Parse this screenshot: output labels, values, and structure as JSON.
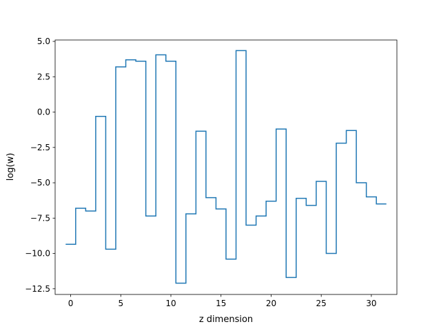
{
  "chart_data": {
    "type": "line",
    "style": "step",
    "title": "",
    "xlabel": "z dimension",
    "ylabel": "log(w)",
    "xlim": [
      -1.55,
      32.55
    ],
    "ylim": [
      -12.9,
      5.1
    ],
    "xticks": [
      0,
      5,
      10,
      15,
      20,
      25,
      30
    ],
    "xtick_labels": [
      "0",
      "5",
      "10",
      "15",
      "20",
      "25",
      "30"
    ],
    "yticks": [
      -12.5,
      -10.0,
      -7.5,
      -5.0,
      -2.5,
      0.0,
      2.5,
      5.0
    ],
    "ytick_labels": [
      "−12.5",
      "−10.0",
      "−7.5",
      "−5.0",
      "−2.5",
      "0.0",
      "2.5",
      "5.0"
    ],
    "grid": false,
    "color": "#1f77b4",
    "series": [
      {
        "x": [
          0,
          1,
          2,
          3,
          4,
          5,
          6,
          7,
          8,
          9,
          10,
          11,
          12,
          13,
          14,
          15,
          16,
          17,
          18,
          19,
          20,
          21,
          22,
          23,
          24,
          25,
          26,
          27,
          28,
          29,
          30,
          31
        ],
        "values": [
          -9.35,
          -6.8,
          -7.0,
          -0.3,
          -9.7,
          3.2,
          3.7,
          3.6,
          -7.35,
          4.05,
          3.6,
          -12.1,
          -7.2,
          -1.35,
          -6.05,
          -6.85,
          -10.4,
          4.35,
          -8.0,
          -7.35,
          -6.3,
          -1.2,
          -11.7,
          -6.1,
          -6.6,
          -4.9,
          -10.0,
          -2.2,
          -1.3,
          -5.0,
          -6.0,
          -6.5
        ]
      }
    ]
  }
}
